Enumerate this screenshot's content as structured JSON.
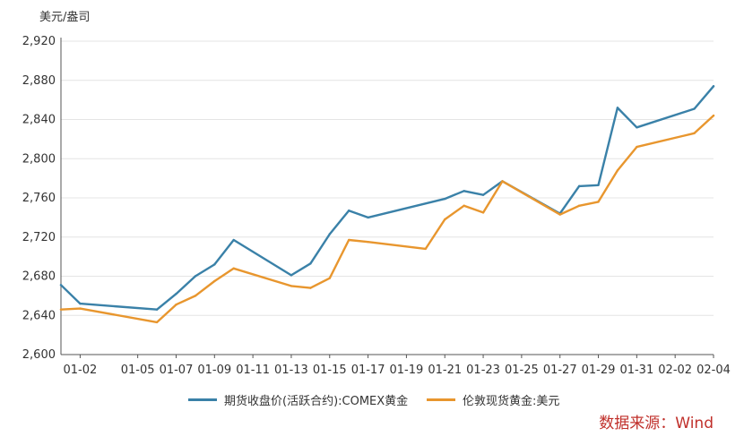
{
  "chart_data": {
    "type": "line",
    "ylabel": "美元/盎司",
    "ylim": [
      2600,
      2920
    ],
    "yticks": [
      2600,
      2640,
      2680,
      2720,
      2760,
      2800,
      2840,
      2880,
      2920
    ],
    "ytick_labels": [
      "2,600",
      "2,640",
      "2,680",
      "2,720",
      "2,760",
      "2,800",
      "2,840",
      "2,880",
      "2,920"
    ],
    "x_tick_labels": [
      "01-02",
      "01-05",
      "01-07",
      "01-09",
      "01-11",
      "01-13",
      "01-15",
      "01-17",
      "01-19",
      "01-21",
      "01-23",
      "01-25",
      "01-27",
      "01-29",
      "01-31",
      "02-02",
      "02-04"
    ],
    "grid": true,
    "legend_position": "bottom",
    "series": [
      {
        "name": "期货收盘价(活跃合约):COMEX黄金",
        "color": "#3a81a8",
        "points": [
          [
            "01-01",
            2671
          ],
          [
            "01-02",
            2652
          ],
          [
            "01-06",
            2646
          ],
          [
            "01-07",
            2662
          ],
          [
            "01-08",
            2680
          ],
          [
            "01-09",
            2692
          ],
          [
            "01-10",
            2717
          ],
          [
            "01-13",
            2681
          ],
          [
            "01-14",
            2693
          ],
          [
            "01-15",
            2723
          ],
          [
            "01-16",
            2747
          ],
          [
            "01-17",
            2740
          ],
          [
            "01-21",
            2759
          ],
          [
            "01-22",
            2767
          ],
          [
            "01-23",
            2763
          ],
          [
            "01-24",
            2777
          ],
          [
            "01-27",
            2744
          ],
          [
            "01-28",
            2772
          ],
          [
            "01-29",
            2773
          ],
          [
            "01-30",
            2852
          ],
          [
            "01-31",
            2832
          ],
          [
            "02-03",
            2851
          ],
          [
            "02-04",
            2874
          ]
        ]
      },
      {
        "name": "伦敦现货黄金:美元",
        "color": "#e8962e",
        "points": [
          [
            "01-01",
            2646
          ],
          [
            "01-02",
            2647
          ],
          [
            "01-06",
            2633
          ],
          [
            "01-07",
            2651
          ],
          [
            "01-08",
            2660
          ],
          [
            "01-09",
            2675
          ],
          [
            "01-10",
            2688
          ],
          [
            "01-13",
            2670
          ],
          [
            "01-14",
            2668
          ],
          [
            "01-15",
            2678
          ],
          [
            "01-16",
            2717
          ],
          [
            "01-17",
            2715
          ],
          [
            "01-20",
            2708
          ],
          [
            "01-21",
            2738
          ],
          [
            "01-22",
            2752
          ],
          [
            "01-23",
            2745
          ],
          [
            "01-24",
            2777
          ],
          [
            "01-27",
            2743
          ],
          [
            "01-28",
            2752
          ],
          [
            "01-29",
            2756
          ],
          [
            "01-30",
            2788
          ],
          [
            "01-31",
            2812
          ],
          [
            "02-03",
            2826
          ],
          [
            "02-04",
            2844
          ]
        ]
      }
    ]
  },
  "source_text": "数据来源：Wind"
}
